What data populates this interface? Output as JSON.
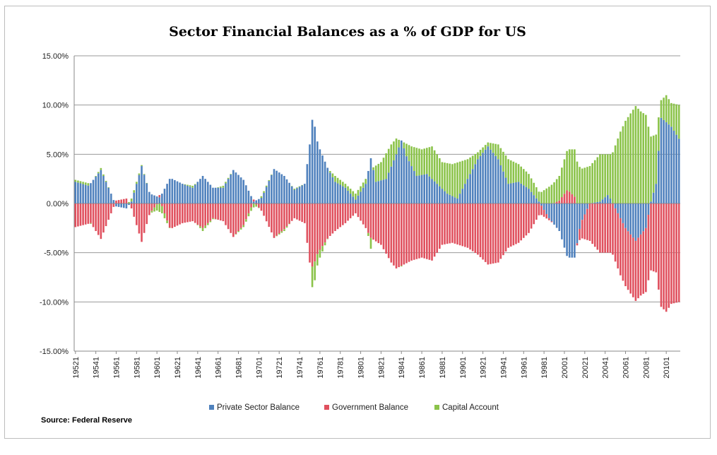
{
  "chart_data": {
    "type": "bar",
    "stacked": true,
    "title": "Sector Financial Balances as a % of GDP for US",
    "source": "Source: Federal Reserve",
    "ylim": [
      -15,
      15
    ],
    "yticks": [
      15,
      10,
      5,
      0,
      -5,
      -10,
      -15
    ],
    "ytick_labels": [
      "15.00%",
      "10.00%",
      "5.00%",
      "0.00%",
      "-5.00%",
      "-10.00%",
      "-15.00%"
    ],
    "x_tick_labels": [
      "19521",
      "19541",
      "19561",
      "19581",
      "19601",
      "19621",
      "19641",
      "19661",
      "19681",
      "19701",
      "19721",
      "19741",
      "19761",
      "19781",
      "19801",
      "19821",
      "19841",
      "19861",
      "19881",
      "19901",
      "19921",
      "19941",
      "19961",
      "19981",
      "20001",
      "20021",
      "20041",
      "20061",
      "20081",
      "20101"
    ],
    "legend_position": "bottom",
    "colors": {
      "private": "#4f81bd",
      "government": "#e0505e",
      "capital": "#8bc34a"
    },
    "series": [
      {
        "name": "Private Sector Balance",
        "key": "private"
      },
      {
        "name": "Government Balance",
        "key": "government"
      },
      {
        "name": "Capital Account",
        "key": "capital"
      }
    ],
    "quarters_start": "1952Q1",
    "private_anchors": [
      [
        1952.0,
        2.2
      ],
      [
        1953.3,
        1.8
      ],
      [
        1954.5,
        3.4
      ],
      [
        1955.5,
        1.0
      ],
      [
        1956.0,
        -0.3
      ],
      [
        1957.0,
        -0.5
      ],
      [
        1957.5,
        0.2
      ],
      [
        1958.5,
        3.8
      ],
      [
        1959.3,
        1.0
      ],
      [
        1960.3,
        0.6
      ],
      [
        1961.3,
        2.6
      ],
      [
        1962.5,
        2.0
      ],
      [
        1963.5,
        1.6
      ],
      [
        1964.5,
        2.8
      ],
      [
        1965.5,
        1.6
      ],
      [
        1966.5,
        1.6
      ],
      [
        1967.5,
        3.4
      ],
      [
        1968.5,
        2.4
      ],
      [
        1969.5,
        0.2
      ],
      [
        1970.3,
        0.6
      ],
      [
        1971.5,
        3.5
      ],
      [
        1972.5,
        2.8
      ],
      [
        1973.5,
        1.4
      ],
      [
        1974.5,
        2.0
      ],
      [
        1975.0,
        6.0
      ],
      [
        1975.3,
        9.0
      ],
      [
        1975.8,
        6.0
      ],
      [
        1976.8,
        3.5
      ],
      [
        1977.5,
        2.2
      ],
      [
        1978.5,
        1.6
      ],
      [
        1979.5,
        0.4
      ],
      [
        1980.5,
        2.0
      ],
      [
        1981.0,
        4.6
      ],
      [
        1981.5,
        2.2
      ],
      [
        1982.5,
        2.5
      ],
      [
        1983.5,
        5.0
      ],
      [
        1984.0,
        6.4
      ],
      [
        1984.5,
        4.8
      ],
      [
        1985.5,
        2.8
      ],
      [
        1986.5,
        3.0
      ],
      [
        1987.5,
        2.0
      ],
      [
        1988.5,
        1.0
      ],
      [
        1989.5,
        0.5
      ],
      [
        1990.5,
        2.5
      ],
      [
        1991.5,
        4.5
      ],
      [
        1992.5,
        5.8
      ],
      [
        1993.5,
        4.5
      ],
      [
        1994.5,
        2.0
      ],
      [
        1995.5,
        2.2
      ],
      [
        1996.5,
        1.5
      ],
      [
        1997.5,
        0.2
      ],
      [
        1998.5,
        -1.5
      ],
      [
        1999.5,
        -2.8
      ],
      [
        2000.3,
        -5.5
      ],
      [
        2001.0,
        -5.5
      ],
      [
        2001.6,
        -2.0
      ],
      [
        2002.5,
        0.0
      ],
      [
        2003.5,
        0.2
      ],
      [
        2004.3,
        0.9
      ],
      [
        2005.0,
        -0.5
      ],
      [
        2006.0,
        -2.5
      ],
      [
        2007.0,
        -3.8
      ],
      [
        2008.0,
        -2.5
      ],
      [
        2008.5,
        0.2
      ],
      [
        2009.0,
        2.0
      ],
      [
        2009.5,
        8.7
      ],
      [
        2010.5,
        7.8
      ],
      [
        2011.3,
        6.5
      ]
    ],
    "government_anchors": [
      [
        1952.0,
        -2.4
      ],
      [
        1953.5,
        -2.0
      ],
      [
        1954.5,
        -3.6
      ],
      [
        1955.5,
        -1.0
      ],
      [
        1956.0,
        0.3
      ],
      [
        1957.0,
        0.5
      ],
      [
        1957.5,
        -0.5
      ],
      [
        1958.5,
        -3.9
      ],
      [
        1959.3,
        -1.0
      ],
      [
        1960.3,
        0.3
      ],
      [
        1961.3,
        -2.6
      ],
      [
        1962.5,
        -2.0
      ],
      [
        1963.5,
        -1.8
      ],
      [
        1964.5,
        -2.5
      ],
      [
        1965.5,
        -1.5
      ],
      [
        1966.5,
        -1.8
      ],
      [
        1967.5,
        -3.4
      ],
      [
        1968.5,
        -2.2
      ],
      [
        1969.5,
        0.2
      ],
      [
        1970.3,
        -0.8
      ],
      [
        1971.5,
        -3.5
      ],
      [
        1972.5,
        -2.6
      ],
      [
        1973.5,
        -1.5
      ],
      [
        1974.5,
        -2.0
      ],
      [
        1975.0,
        -6.0
      ],
      [
        1975.3,
        -6.5
      ],
      [
        1975.8,
        -5.0
      ],
      [
        1976.8,
        -3.5
      ],
      [
        1977.5,
        -2.8
      ],
      [
        1978.5,
        -2.0
      ],
      [
        1979.5,
        -1.0
      ],
      [
        1980.5,
        -2.5
      ],
      [
        1981.0,
        -3.5
      ],
      [
        1982.0,
        -4.2
      ],
      [
        1983.0,
        -6.0
      ],
      [
        1983.5,
        -6.6
      ],
      [
        1985.0,
        -5.8
      ],
      [
        1986.0,
        -5.5
      ],
      [
        1987.0,
        -5.8
      ],
      [
        1988.0,
        -4.2
      ],
      [
        1989.0,
        -4.0
      ],
      [
        1990.5,
        -4.5
      ],
      [
        1991.5,
        -5.2
      ],
      [
        1992.5,
        -6.2
      ],
      [
        1993.5,
        -6.0
      ],
      [
        1994.5,
        -4.5
      ],
      [
        1995.5,
        -4.0
      ],
      [
        1996.5,
        -3.0
      ],
      [
        1997.5,
        -1.2
      ],
      [
        1998.5,
        -0.2
      ],
      [
        1999.5,
        0.3
      ],
      [
        2000.3,
        1.4
      ],
      [
        2001.0,
        0.7
      ],
      [
        2001.6,
        -1.5
      ],
      [
        2002.5,
        -3.8
      ],
      [
        2003.5,
        -5.0
      ],
      [
        2004.5,
        -5.0
      ],
      [
        2005.5,
        -5.8
      ],
      [
        2006.5,
        -6.0
      ],
      [
        2007.5,
        -6.2
      ],
      [
        2008.5,
        -6.8
      ],
      [
        2009.0,
        -7.0
      ],
      [
        2009.5,
        -10.5
      ],
      [
        2010.0,
        -11.0
      ],
      [
        2010.5,
        -10.2
      ],
      [
        2011.3,
        -10.0
      ]
    ]
  }
}
